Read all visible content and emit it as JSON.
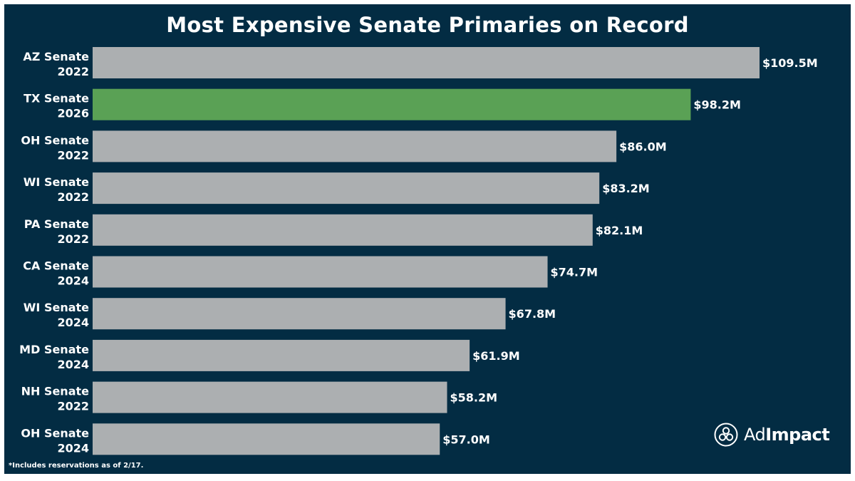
{
  "chart_data": {
    "type": "bar",
    "orientation": "horizontal",
    "title": "Most Expensive Senate Primaries on Record",
    "categories": [
      {
        "line1": "AZ Senate",
        "line2": "2022"
      },
      {
        "line1": "TX Senate",
        "line2": "2026"
      },
      {
        "line1": "OH Senate",
        "line2": "2022"
      },
      {
        "line1": "WI Senate",
        "line2": "2022"
      },
      {
        "line1": "PA Senate",
        "line2": "2022"
      },
      {
        "line1": "CA Senate",
        "line2": "2024"
      },
      {
        "line1": "WI Senate",
        "line2": "2024"
      },
      {
        "line1": "MD Senate",
        "line2": "2024"
      },
      {
        "line1": "NH Senate",
        "line2": "2022"
      },
      {
        "line1": "OH Senate",
        "line2": "2024"
      }
    ],
    "values": [
      109.5,
      98.2,
      86.0,
      83.2,
      82.1,
      74.7,
      67.8,
      61.9,
      58.2,
      57.0
    ],
    "value_labels": [
      "$109.5M",
      "$98.2M",
      "$86.0M",
      "$83.2M",
      "$82.1M",
      "$74.7M",
      "$67.8M",
      "$61.9M",
      "$58.2M",
      "$57.0M"
    ],
    "unit": "USD millions",
    "highlight_index": 1,
    "xlim": [
      0,
      109.5
    ],
    "grid": false,
    "legend": "none"
  },
  "colors": {
    "background": "#032c43",
    "bar": "#acafb1",
    "bar_highlight": "#5aa155",
    "text": "#ffffff"
  },
  "footnote": "*Includes reservations as of 2/17.",
  "logo": {
    "text_regular": "Ad",
    "text_bold": "Impact",
    "icon": "adimpact-logo-icon"
  }
}
